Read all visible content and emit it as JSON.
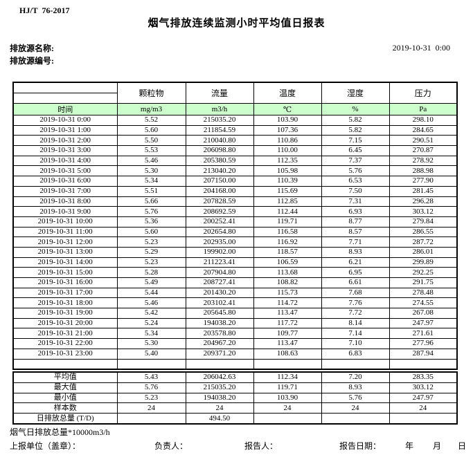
{
  "doc": {
    "standard": "HJ/T  76-2017",
    "title": "烟气排放连续监测小时平均值日报表",
    "source_name_label": "排放源名称:",
    "source_id_label": "排放源编号:",
    "report_datetime": "2019-10-31  0:00"
  },
  "table": {
    "time_header": "时间",
    "columns": [
      {
        "name": "颗粒物",
        "unit": "mg/m3"
      },
      {
        "name": "流量",
        "unit": "m3/h"
      },
      {
        "name": "温度",
        "unit": "℃"
      },
      {
        "name": "湿度",
        "unit": "%"
      },
      {
        "name": "压力",
        "unit": "Pa"
      }
    ],
    "rows": [
      {
        "time": "2019-10-31 0:00",
        "values": [
          "5.52",
          "215035.20",
          "103.90",
          "5.82",
          "298.10"
        ]
      },
      {
        "time": "2019-10-31 1:00",
        "values": [
          "5.60",
          "211854.59",
          "107.36",
          "5.82",
          "284.65"
        ]
      },
      {
        "time": "2019-10-31 2:00",
        "values": [
          "5.50",
          "210040.80",
          "110.86",
          "7.15",
          "290.51"
        ]
      },
      {
        "time": "2019-10-31 3:00",
        "values": [
          "5.53",
          "206098.80",
          "110.00",
          "6.45",
          "270.87"
        ]
      },
      {
        "time": "2019-10-31 4:00",
        "values": [
          "5.46",
          "205380.59",
          "112.35",
          "7.37",
          "278.92"
        ]
      },
      {
        "time": "2019-10-31 5:00",
        "values": [
          "5.30",
          "213040.20",
          "105.98",
          "5.76",
          "288.98"
        ]
      },
      {
        "time": "2019-10-31 6:00",
        "values": [
          "5.34",
          "207150.00",
          "110.39",
          "6.53",
          "277.90"
        ]
      },
      {
        "time": "2019-10-31 7:00",
        "values": [
          "5.51",
          "204168.00",
          "115.69",
          "7.50",
          "281.45"
        ]
      },
      {
        "time": "2019-10-31 8:00",
        "values": [
          "5.66",
          "207828.59",
          "112.85",
          "7.31",
          "296.28"
        ]
      },
      {
        "time": "2019-10-31 9:00",
        "values": [
          "5.76",
          "208692.59",
          "112.44",
          "6.93",
          "303.12"
        ]
      },
      {
        "time": "2019-10-31 10:00",
        "values": [
          "5.36",
          "200252.41",
          "119.71",
          "8.77",
          "279.84"
        ]
      },
      {
        "time": "2019-10-31 11:00",
        "values": [
          "5.60",
          "202654.80",
          "116.58",
          "8.57",
          "286.55"
        ]
      },
      {
        "time": "2019-10-31 12:00",
        "values": [
          "5.23",
          "202935.00",
          "116.92",
          "7.71",
          "287.72"
        ]
      },
      {
        "time": "2019-10-31 13:00",
        "values": [
          "5.29",
          "199902.00",
          "118.57",
          "8.93",
          "286.01"
        ]
      },
      {
        "time": "2019-10-31 14:00",
        "values": [
          "5.23",
          "211223.41",
          "106.59",
          "6.21",
          "299.89"
        ]
      },
      {
        "time": "2019-10-31 15:00",
        "values": [
          "5.28",
          "207904.80",
          "113.68",
          "6.95",
          "292.25"
        ]
      },
      {
        "time": "2019-10-31 16:00",
        "values": [
          "5.49",
          "208727.41",
          "108.82",
          "6.61",
          "291.75"
        ]
      },
      {
        "time": "2019-10-31 17:00",
        "values": [
          "5.44",
          "201430.20",
          "115.73",
          "7.68",
          "278.48"
        ]
      },
      {
        "time": "2019-10-31 18:00",
        "values": [
          "5.46",
          "203102.41",
          "114.72",
          "7.76",
          "274.55"
        ]
      },
      {
        "time": "2019-10-31 19:00",
        "values": [
          "5.42",
          "205645.80",
          "113.47",
          "7.72",
          "267.08"
        ]
      },
      {
        "time": "2019-10-31 20:00",
        "values": [
          "5.24",
          "194038.20",
          "117.72",
          "8.14",
          "247.97"
        ]
      },
      {
        "time": "2019-10-31 21:00",
        "values": [
          "5.34",
          "203578.80",
          "109.77",
          "7.14",
          "271.61"
        ]
      },
      {
        "time": "2019-10-31 22:00",
        "values": [
          "5.30",
          "204967.20",
          "113.47",
          "7.10",
          "277.96"
        ]
      },
      {
        "time": "2019-10-31 23:00",
        "values": [
          "5.40",
          "209371.20",
          "108.63",
          "6.83",
          "287.94"
        ]
      }
    ],
    "summary": [
      {
        "label": "平均值",
        "values": [
          "5.43",
          "206042.63",
          "112.34",
          "7.20",
          "283.35"
        ]
      },
      {
        "label": "最大值",
        "values": [
          "5.76",
          "215035.20",
          "119.71",
          "8.93",
          "303.12"
        ]
      },
      {
        "label": "最小值",
        "values": [
          "5.23",
          "194038.20",
          "103.90",
          "5.76",
          "247.97"
        ]
      },
      {
        "label": "样本数",
        "values": [
          "24",
          "24",
          "24",
          "24",
          "24"
        ]
      },
      {
        "label": "日排放总量 (T/D)",
        "values": [
          "",
          "494.50",
          "",
          "",
          ""
        ]
      }
    ]
  },
  "footer": {
    "note": "烟气日排放总量*10000m3/h",
    "report_unit_label": "上报单位（盖章）：",
    "responsible_label": "负责人：",
    "reporter_label": "报告人：",
    "report_date_label": "报告日期：",
    "year_label": "年",
    "month_label": "月",
    "day_label": "日"
  },
  "colors": {
    "header_green": "#ccffcc",
    "border": "#000000"
  }
}
